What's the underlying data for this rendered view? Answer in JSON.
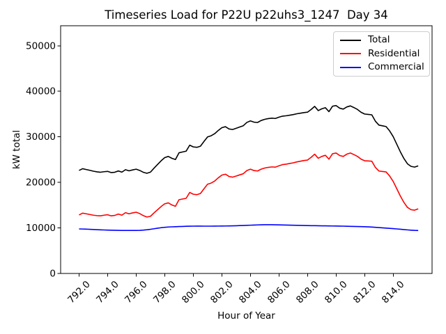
{
  "chart_data": {
    "type": "line",
    "title": "Timeseries Load for P22U p22uhs3_1247  Day 34",
    "xlabel": "Hour of Year",
    "ylabel": "kW total",
    "xlim": [
      790.71,
      816.72
    ],
    "ylim": [
      0,
      54400
    ],
    "grid": false,
    "legend_position": "upper right",
    "xtick_values": [
      792,
      794,
      796,
      798,
      800,
      802,
      804,
      806,
      808,
      810,
      812,
      814
    ],
    "xtick_labels": [
      "792.0",
      "794.0",
      "796.0",
      "798.0",
      "800.0",
      "802.0",
      "804.0",
      "806.0",
      "808.0",
      "810.0",
      "812.0",
      "814.0"
    ],
    "ytick_values": [
      0,
      10000,
      20000,
      30000,
      40000,
      50000
    ],
    "ytick_labels": [
      "0",
      "10000",
      "20000",
      "30000",
      "40000",
      "50000"
    ],
    "x": [
      792.0,
      792.25,
      792.5,
      792.75,
      793.0,
      793.25,
      793.5,
      793.75,
      794.0,
      794.25,
      794.5,
      794.75,
      795.0,
      795.25,
      795.5,
      795.75,
      796.0,
      796.25,
      796.5,
      796.75,
      797.0,
      797.25,
      797.5,
      797.75,
      798.0,
      798.25,
      798.5,
      798.75,
      799.0,
      799.25,
      799.5,
      799.75,
      800.0,
      800.25,
      800.5,
      800.75,
      801.0,
      801.25,
      801.5,
      801.75,
      802.0,
      802.25,
      802.5,
      802.75,
      803.0,
      803.25,
      803.5,
      803.75,
      804.0,
      804.25,
      804.5,
      804.75,
      805.0,
      805.25,
      805.5,
      805.75,
      806.0,
      806.25,
      806.5,
      806.75,
      807.0,
      807.25,
      807.5,
      807.75,
      808.0,
      808.25,
      808.5,
      808.75,
      809.0,
      809.25,
      809.5,
      809.75,
      810.0,
      810.25,
      810.5,
      810.75,
      811.0,
      811.25,
      811.5,
      811.75,
      812.0,
      812.25,
      812.5,
      812.75,
      813.0,
      813.25,
      813.5,
      813.75,
      814.0,
      814.25,
      814.5,
      814.75,
      815.0,
      815.25,
      815.5,
      815.75
    ],
    "series": [
      {
        "name": "Total",
        "color": "#000000",
        "values": [
          22630,
          23010,
          22830,
          22650,
          22460,
          22320,
          22230,
          22350,
          22420,
          22150,
          22230,
          22510,
          22250,
          22790,
          22540,
          22740,
          22900,
          22620,
          22220,
          22000,
          22250,
          23120,
          23940,
          24750,
          25440,
          25700,
          25290,
          25020,
          26500,
          26680,
          26860,
          28170,
          27790,
          27700,
          27950,
          28990,
          29990,
          30240,
          30700,
          31410,
          32020,
          32230,
          31740,
          31610,
          31880,
          32160,
          32440,
          33170,
          33500,
          33230,
          33160,
          33590,
          33850,
          34010,
          34100,
          34040,
          34320,
          34550,
          34630,
          34760,
          34890,
          35070,
          35200,
          35330,
          35420,
          36000,
          36690,
          35770,
          36160,
          36400,
          35540,
          36730,
          36870,
          36300,
          36090,
          36570,
          36800,
          36430,
          36010,
          35390,
          35010,
          34930,
          34840,
          33440,
          32580,
          32420,
          32260,
          31300,
          30040,
          28380,
          26710,
          25240,
          24070,
          23510,
          23360,
          23630
        ]
      },
      {
        "name": "Residential",
        "color": "#ff0000",
        "values": [
          12850,
          13250,
          13100,
          12950,
          12800,
          12700,
          12650,
          12800,
          12900,
          12650,
          12750,
          13050,
          12800,
          13350,
          13100,
          13300,
          13450,
          13150,
          12700,
          12400,
          12550,
          13300,
          14000,
          14700,
          15300,
          15500,
          15050,
          14750,
          16200,
          16350,
          16500,
          17790,
          17400,
          17300,
          17550,
          18600,
          19600,
          19850,
          20300,
          21000,
          21600,
          21800,
          21300,
          21150,
          21400,
          21650,
          21900,
          22600,
          22900,
          22600,
          22500,
          22900,
          23150,
          23300,
          23400,
          23350,
          23650,
          23900,
          24000,
          24150,
          24300,
          24500,
          24650,
          24800,
          24900,
          25500,
          26200,
          25300,
          25700,
          25950,
          25100,
          26300,
          26450,
          25900,
          25700,
          26200,
          26450,
          26100,
          25700,
          25100,
          24750,
          24700,
          24650,
          23300,
          22500,
          22400,
          22300,
          21400,
          20200,
          18600,
          17000,
          15600,
          14500,
          14000,
          13900,
          14200
        ]
      },
      {
        "name": "Commercial",
        "color": "#0000ff",
        "values": [
          9780,
          9760,
          9730,
          9700,
          9660,
          9620,
          9580,
          9550,
          9520,
          9500,
          9480,
          9460,
          9450,
          9440,
          9440,
          9440,
          9450,
          9470,
          9520,
          9600,
          9700,
          9820,
          9940,
          10050,
          10140,
          10200,
          10240,
          10270,
          10300,
          10330,
          10360,
          10380,
          10390,
          10400,
          10400,
          10390,
          10390,
          10390,
          10400,
          10410,
          10420,
          10430,
          10440,
          10460,
          10480,
          10510,
          10540,
          10570,
          10600,
          10630,
          10660,
          10690,
          10700,
          10710,
          10700,
          10690,
          10670,
          10650,
          10630,
          10610,
          10590,
          10570,
          10550,
          10530,
          10520,
          10500,
          10490,
          10470,
          10460,
          10450,
          10440,
          10430,
          10420,
          10400,
          10390,
          10370,
          10350,
          10330,
          10310,
          10290,
          10260,
          10230,
          10190,
          10140,
          10080,
          10020,
          9960,
          9900,
          9840,
          9780,
          9710,
          9640,
          9570,
          9510,
          9460,
          9430
        ]
      }
    ]
  }
}
